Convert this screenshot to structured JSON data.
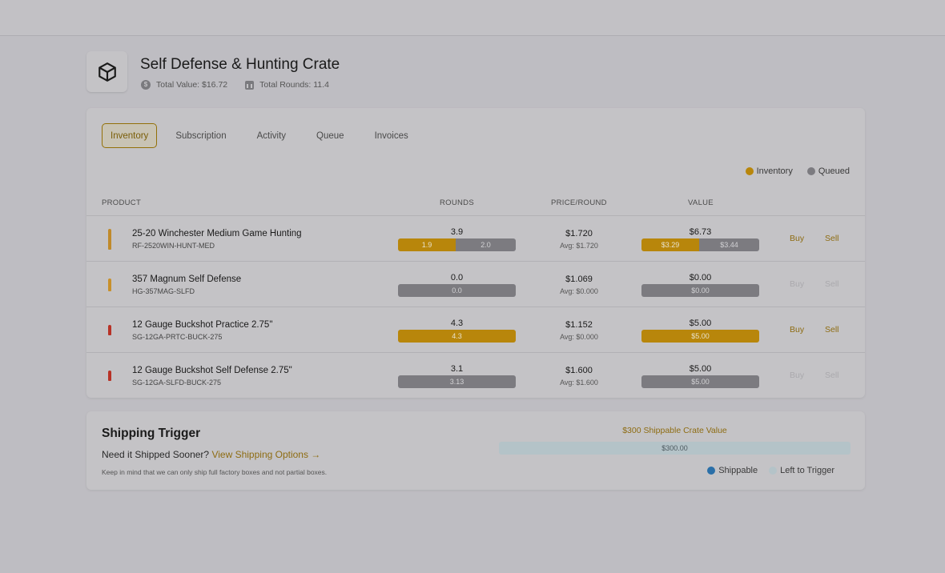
{
  "colors": {
    "inventory": "#b8860b",
    "queued": "#7c7b80",
    "shippable": "#2a6fa8",
    "left_to_trigger": "#b4c3c8",
    "accent": "#8e6c12"
  },
  "crate": {
    "icon": "box-icon",
    "title": "Self Defense & Hunting Crate",
    "total_value": "Total Value: $16.72",
    "total_rounds": "Total Rounds: 11.4"
  },
  "tabs": [
    "Inventory",
    "Subscription",
    "Activity",
    "Queue",
    "Invoices"
  ],
  "legend": {
    "inventory": "Inventory",
    "queued": "Queued"
  },
  "table": {
    "headers": {
      "product": "PRODUCT",
      "rounds": "ROUNDS",
      "price": "PRICE/ROUND",
      "value": "VALUE"
    },
    "rows": [
      {
        "name": "25-20 Winchester Medium Game Hunting",
        "sku": "RF-2520WIN-HUNT-MED",
        "rounds": "3.9",
        "rounds_inv": "1.9",
        "rounds_que": "2.0",
        "rounds_inv_frac": 0.49,
        "price": "$1.720",
        "avg": "Avg: $1.720",
        "value": "$6.73",
        "value_inv": "$3.29",
        "value_que": "$3.44",
        "value_inv_frac": 0.49,
        "buy": "Buy",
        "sell": "Sell",
        "enabled": true,
        "bullet_color": "#c08a2a"
      },
      {
        "name": "357 Magnum Self Defense",
        "sku": "HG-357MAG-SLFD",
        "rounds": "0.0",
        "rounds_inv": "",
        "rounds_que": "0.0",
        "rounds_inv_frac": 0,
        "price": "$1.069",
        "avg": "Avg: $0.000",
        "value": "$0.00",
        "value_inv": "",
        "value_que": "$0.00",
        "value_inv_frac": 0,
        "buy": "Buy",
        "sell": "Sell",
        "enabled": false,
        "bullet_color": "#c8902a"
      },
      {
        "name": "12 Gauge Buckshot Practice 2.75\"",
        "sku": "SG-12GA-PRTC-BUCK-275",
        "rounds": "4.3",
        "rounds_inv": "4.3",
        "rounds_que": "",
        "rounds_inv_frac": 1,
        "price": "$1.152",
        "avg": "Avg: $0.000",
        "value": "$5.00",
        "value_inv": "$5.00",
        "value_que": "",
        "value_inv_frac": 1,
        "buy": "Buy",
        "sell": "Sell",
        "enabled": true,
        "bullet_color": "#b83226"
      },
      {
        "name": "12 Gauge Buckshot Self Defense 2.75\"",
        "sku": "SG-12GA-SLFD-BUCK-275",
        "rounds": "3.1",
        "rounds_inv": "",
        "rounds_que": "3.13",
        "rounds_inv_frac": 0,
        "price": "$1.600",
        "avg": "Avg: $1.600",
        "value": "$5.00",
        "value_inv": "",
        "value_que": "$5.00",
        "value_inv_frac": 0,
        "buy": "Buy",
        "sell": "Sell",
        "enabled": false,
        "bullet_color": "#b83226"
      }
    ]
  },
  "shipping": {
    "title": "Shipping Trigger",
    "question": "Need it Shipped Sooner?",
    "link": "View Shipping Options →",
    "note": "Keep in mind that we can only ship full factory boxes and not partial boxes.",
    "trigger_label": "$300 Shippable Crate Value",
    "bar_value": "$300.00",
    "shippable_fraction": 0,
    "legend_shippable": "Shippable",
    "legend_left": "Left to Trigger"
  }
}
